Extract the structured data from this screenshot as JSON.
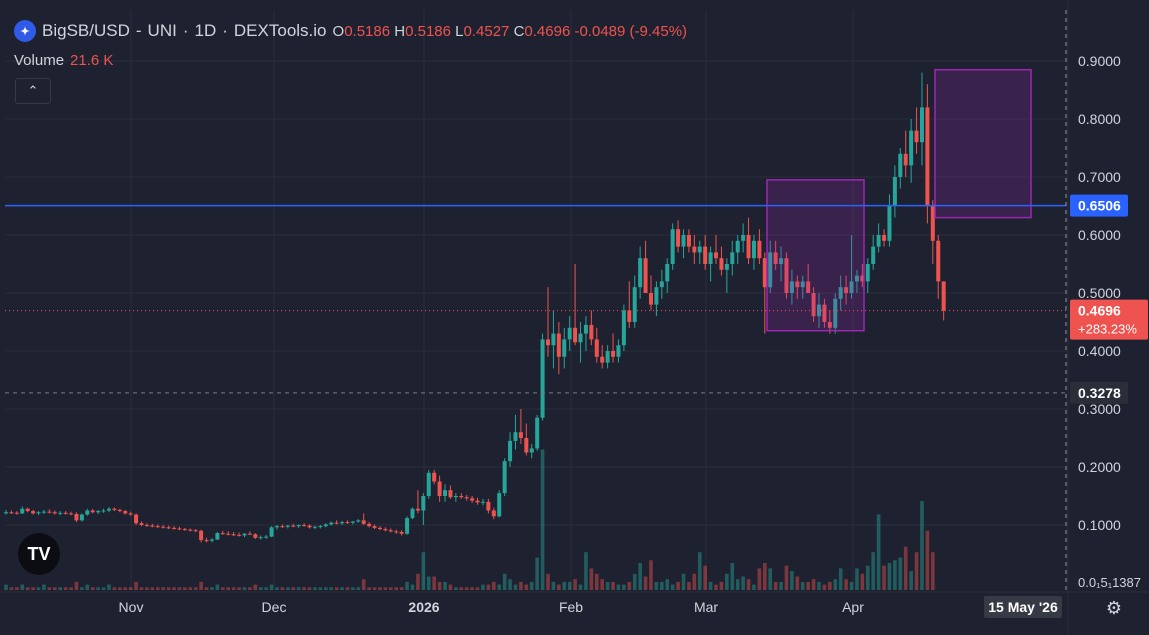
{
  "header": {
    "symbol": "BigSB/USD",
    "exchange": "UNI",
    "interval": "1D",
    "source": "DEXTools.io",
    "o_label": "O",
    "o": "0.5186",
    "h_label": "H",
    "h": "0.5186",
    "l_label": "L",
    "l": "0.4527",
    "c_label": "C",
    "c": "0.4696",
    "change": "-0.0489 (-9.45%)"
  },
  "volume_label": "Volume",
  "volume_value": "21.6 K",
  "colors": {
    "up": "#26a69a",
    "down": "#ef5350",
    "hline": "#2962ff",
    "box": "#9c27b0",
    "bg": "#1e2230",
    "grid": "#2a2e39",
    "text": "#d1d4dc"
  },
  "chart_data": {
    "type": "candlestick",
    "ylim": [
      0,
      0.98
    ],
    "y_ticks": [
      "0.9000",
      "0.8000",
      "0.7000",
      "0.6000",
      "0.5000",
      "0.4000",
      "0.3000",
      "0.2000",
      "0.1000"
    ],
    "x_ticks": [
      "Nov",
      "Dec",
      "2026",
      "Feb",
      "Mar",
      "Apr"
    ],
    "crosshair_x_label": "15 May '26",
    "axis_bottom_label": "0.0₁5₁1387",
    "price_labels": {
      "hline": "0.6506",
      "last": "0.4696",
      "last_pct": "+283.23%",
      "dashed": "0.3278"
    },
    "hline_value": 0.6506,
    "dashed_value": 0.3278,
    "last_value": 0.4696,
    "boxes": [
      {
        "x0": "Mar 15",
        "x1": "Apr 3",
        "y0": 0.435,
        "y1": 0.695
      },
      {
        "x0": "Apr 21",
        "x1": "May 6",
        "y0": 0.63,
        "y1": 0.885
      }
    ],
    "ohlc": [
      [
        0.12,
        0.126,
        0.118,
        0.122
      ],
      [
        0.122,
        0.125,
        0.119,
        0.121
      ],
      [
        0.121,
        0.124,
        0.118,
        0.12
      ],
      [
        0.12,
        0.132,
        0.119,
        0.128
      ],
      [
        0.128,
        0.13,
        0.122,
        0.124
      ],
      [
        0.124,
        0.126,
        0.118,
        0.12
      ],
      [
        0.12,
        0.124,
        0.117,
        0.122
      ],
      [
        0.122,
        0.126,
        0.119,
        0.123
      ],
      [
        0.123,
        0.127,
        0.12,
        0.122
      ],
      [
        0.122,
        0.125,
        0.118,
        0.12
      ],
      [
        0.12,
        0.124,
        0.117,
        0.121
      ],
      [
        0.121,
        0.124,
        0.118,
        0.12
      ],
      [
        0.12,
        0.123,
        0.117,
        0.119
      ],
      [
        0.119,
        0.122,
        0.105,
        0.108
      ],
      [
        0.108,
        0.12,
        0.106,
        0.118
      ],
      [
        0.118,
        0.128,
        0.116,
        0.125
      ],
      [
        0.125,
        0.128,
        0.12,
        0.122
      ],
      [
        0.122,
        0.126,
        0.119,
        0.124
      ],
      [
        0.124,
        0.128,
        0.121,
        0.125
      ],
      [
        0.125,
        0.131,
        0.122,
        0.128
      ],
      [
        0.128,
        0.13,
        0.124,
        0.126
      ],
      [
        0.126,
        0.128,
        0.122,
        0.124
      ],
      [
        0.124,
        0.126,
        0.118,
        0.12
      ],
      [
        0.12,
        0.123,
        0.116,
        0.118
      ],
      [
        0.118,
        0.12,
        0.1,
        0.103
      ],
      [
        0.103,
        0.106,
        0.098,
        0.1
      ],
      [
        0.1,
        0.103,
        0.097,
        0.099
      ],
      [
        0.099,
        0.102,
        0.096,
        0.098
      ],
      [
        0.098,
        0.101,
        0.095,
        0.097
      ],
      [
        0.097,
        0.1,
        0.094,
        0.096
      ],
      [
        0.096,
        0.099,
        0.093,
        0.095
      ],
      [
        0.095,
        0.098,
        0.092,
        0.094
      ],
      [
        0.094,
        0.097,
        0.091,
        0.093
      ],
      [
        0.093,
        0.095,
        0.09,
        0.092
      ],
      [
        0.092,
        0.094,
        0.089,
        0.091
      ],
      [
        0.091,
        0.093,
        0.088,
        0.09
      ],
      [
        0.09,
        0.092,
        0.07,
        0.074
      ],
      [
        0.074,
        0.078,
        0.07,
        0.073
      ],
      [
        0.073,
        0.077,
        0.07,
        0.075
      ],
      [
        0.075,
        0.088,
        0.074,
        0.086
      ],
      [
        0.086,
        0.09,
        0.083,
        0.085
      ],
      [
        0.085,
        0.089,
        0.082,
        0.084
      ],
      [
        0.084,
        0.088,
        0.081,
        0.083
      ],
      [
        0.083,
        0.087,
        0.08,
        0.082
      ],
      [
        0.082,
        0.086,
        0.079,
        0.085
      ],
      [
        0.085,
        0.089,
        0.083,
        0.084
      ],
      [
        0.084,
        0.086,
        0.076,
        0.078
      ],
      [
        0.078,
        0.082,
        0.075,
        0.079
      ],
      [
        0.079,
        0.083,
        0.076,
        0.08
      ],
      [
        0.08,
        0.098,
        0.079,
        0.096
      ],
      [
        0.096,
        0.1,
        0.092,
        0.098
      ],
      [
        0.098,
        0.101,
        0.095,
        0.097
      ],
      [
        0.097,
        0.1,
        0.094,
        0.099
      ],
      [
        0.099,
        0.102,
        0.096,
        0.098
      ],
      [
        0.098,
        0.101,
        0.095,
        0.1
      ],
      [
        0.1,
        0.103,
        0.097,
        0.099
      ],
      [
        0.099,
        0.101,
        0.094,
        0.096
      ],
      [
        0.096,
        0.099,
        0.093,
        0.097
      ],
      [
        0.097,
        0.1,
        0.094,
        0.098
      ],
      [
        0.098,
        0.103,
        0.096,
        0.101
      ],
      [
        0.101,
        0.106,
        0.099,
        0.104
      ],
      [
        0.104,
        0.108,
        0.101,
        0.103
      ],
      [
        0.103,
        0.107,
        0.1,
        0.105
      ],
      [
        0.105,
        0.108,
        0.102,
        0.104
      ],
      [
        0.104,
        0.107,
        0.101,
        0.106
      ],
      [
        0.106,
        0.11,
        0.104,
        0.108
      ],
      [
        0.108,
        0.12,
        0.1,
        0.102
      ],
      [
        0.102,
        0.105,
        0.096,
        0.098
      ],
      [
        0.098,
        0.101,
        0.093,
        0.095
      ],
      [
        0.095,
        0.098,
        0.091,
        0.093
      ],
      [
        0.093,
        0.096,
        0.089,
        0.091
      ],
      [
        0.091,
        0.094,
        0.087,
        0.089
      ],
      [
        0.089,
        0.092,
        0.085,
        0.088
      ],
      [
        0.088,
        0.091,
        0.082,
        0.085
      ],
      [
        0.085,
        0.115,
        0.083,
        0.112
      ],
      [
        0.112,
        0.13,
        0.11,
        0.128
      ],
      [
        0.128,
        0.16,
        0.12,
        0.125
      ],
      [
        0.125,
        0.155,
        0.1,
        0.15
      ],
      [
        0.15,
        0.195,
        0.145,
        0.19
      ],
      [
        0.19,
        0.195,
        0.17,
        0.175
      ],
      [
        0.175,
        0.185,
        0.14,
        0.15
      ],
      [
        0.15,
        0.17,
        0.14,
        0.16
      ],
      [
        0.16,
        0.168,
        0.145,
        0.148
      ],
      [
        0.148,
        0.155,
        0.14,
        0.15
      ],
      [
        0.15,
        0.155,
        0.145,
        0.148
      ],
      [
        0.148,
        0.152,
        0.142,
        0.146
      ],
      [
        0.146,
        0.15,
        0.138,
        0.142
      ],
      [
        0.142,
        0.147,
        0.135,
        0.139
      ],
      [
        0.139,
        0.145,
        0.134,
        0.14
      ],
      [
        0.14,
        0.145,
        0.12,
        0.125
      ],
      [
        0.125,
        0.13,
        0.11,
        0.115
      ],
      [
        0.115,
        0.16,
        0.113,
        0.155
      ],
      [
        0.155,
        0.215,
        0.15,
        0.21
      ],
      [
        0.21,
        0.26,
        0.2,
        0.245
      ],
      [
        0.245,
        0.29,
        0.23,
        0.26
      ],
      [
        0.26,
        0.3,
        0.24,
        0.25
      ],
      [
        0.25,
        0.275,
        0.22,
        0.225
      ],
      [
        0.225,
        0.24,
        0.215,
        0.232
      ],
      [
        0.232,
        0.29,
        0.228,
        0.285
      ],
      [
        0.285,
        0.43,
        0.28,
        0.42
      ],
      [
        0.42,
        0.51,
        0.39,
        0.41
      ],
      [
        0.41,
        0.47,
        0.37,
        0.43
      ],
      [
        0.43,
        0.45,
        0.36,
        0.39
      ],
      [
        0.39,
        0.44,
        0.37,
        0.42
      ],
      [
        0.42,
        0.46,
        0.4,
        0.44
      ],
      [
        0.44,
        0.55,
        0.41,
        0.415
      ],
      [
        0.415,
        0.45,
        0.38,
        0.43
      ],
      [
        0.43,
        0.46,
        0.4,
        0.445
      ],
      [
        0.445,
        0.47,
        0.41,
        0.42
      ],
      [
        0.42,
        0.44,
        0.38,
        0.39
      ],
      [
        0.39,
        0.41,
        0.37,
        0.38
      ],
      [
        0.38,
        0.41,
        0.37,
        0.4
      ],
      [
        0.4,
        0.43,
        0.38,
        0.39
      ],
      [
        0.39,
        0.42,
        0.38,
        0.41
      ],
      [
        0.41,
        0.48,
        0.4,
        0.47
      ],
      [
        0.47,
        0.52,
        0.44,
        0.45
      ],
      [
        0.45,
        0.53,
        0.44,
        0.51
      ],
      [
        0.51,
        0.58,
        0.49,
        0.56
      ],
      [
        0.56,
        0.59,
        0.5,
        0.5
      ],
      [
        0.5,
        0.53,
        0.47,
        0.48
      ],
      [
        0.48,
        0.52,
        0.46,
        0.51
      ],
      [
        0.51,
        0.54,
        0.49,
        0.52
      ],
      [
        0.52,
        0.56,
        0.5,
        0.55
      ],
      [
        0.55,
        0.62,
        0.54,
        0.61
      ],
      [
        0.61,
        0.625,
        0.57,
        0.58
      ],
      [
        0.58,
        0.61,
        0.56,
        0.6
      ],
      [
        0.6,
        0.61,
        0.57,
        0.58
      ],
      [
        0.58,
        0.6,
        0.55,
        0.57
      ],
      [
        0.57,
        0.59,
        0.55,
        0.58
      ],
      [
        0.58,
        0.6,
        0.54,
        0.55
      ],
      [
        0.55,
        0.58,
        0.52,
        0.57
      ],
      [
        0.57,
        0.6,
        0.55,
        0.56
      ],
      [
        0.56,
        0.58,
        0.53,
        0.54
      ],
      [
        0.54,
        0.56,
        0.5,
        0.55
      ],
      [
        0.55,
        0.59,
        0.53,
        0.57
      ],
      [
        0.57,
        0.6,
        0.55,
        0.59
      ],
      [
        0.59,
        0.62,
        0.57,
        0.6
      ],
      [
        0.6,
        0.63,
        0.55,
        0.56
      ],
      [
        0.56,
        0.6,
        0.54,
        0.59
      ],
      [
        0.59,
        0.61,
        0.55,
        0.56
      ],
      [
        0.56,
        0.57,
        0.43,
        0.51
      ],
      [
        0.51,
        0.59,
        0.5,
        0.57
      ],
      [
        0.57,
        0.59,
        0.54,
        0.55
      ],
      [
        0.55,
        0.58,
        0.52,
        0.56
      ],
      [
        0.56,
        0.57,
        0.49,
        0.5
      ],
      [
        0.5,
        0.54,
        0.48,
        0.52
      ],
      [
        0.52,
        0.53,
        0.49,
        0.51
      ],
      [
        0.51,
        0.53,
        0.49,
        0.52
      ],
      [
        0.52,
        0.55,
        0.5,
        0.5
      ],
      [
        0.5,
        0.51,
        0.45,
        0.46
      ],
      [
        0.46,
        0.5,
        0.44,
        0.48
      ],
      [
        0.48,
        0.49,
        0.44,
        0.45
      ],
      [
        0.45,
        0.47,
        0.43,
        0.44
      ],
      [
        0.44,
        0.5,
        0.43,
        0.49
      ],
      [
        0.49,
        0.53,
        0.47,
        0.51
      ],
      [
        0.51,
        0.53,
        0.48,
        0.5
      ],
      [
        0.5,
        0.6,
        0.49,
        0.52
      ],
      [
        0.52,
        0.54,
        0.5,
        0.53
      ],
      [
        0.53,
        0.55,
        0.51,
        0.52
      ],
      [
        0.52,
        0.56,
        0.5,
        0.55
      ],
      [
        0.55,
        0.6,
        0.54,
        0.58
      ],
      [
        0.58,
        0.62,
        0.57,
        0.6
      ],
      [
        0.6,
        0.61,
        0.58,
        0.59
      ],
      [
        0.59,
        0.67,
        0.58,
        0.65
      ],
      [
        0.65,
        0.72,
        0.63,
        0.7
      ],
      [
        0.7,
        0.75,
        0.68,
        0.74
      ],
      [
        0.74,
        0.78,
        0.7,
        0.72
      ],
      [
        0.72,
        0.8,
        0.69,
        0.78
      ],
      [
        0.78,
        0.82,
        0.74,
        0.76
      ],
      [
        0.76,
        0.88,
        0.72,
        0.82
      ],
      [
        0.82,
        0.86,
        0.62,
        0.65
      ],
      [
        0.65,
        0.66,
        0.55,
        0.59
      ],
      [
        0.59,
        0.6,
        0.49,
        0.52
      ],
      [
        0.52,
        0.5186,
        0.4527,
        0.4696
      ]
    ],
    "volume": [
      2,
      1,
      1,
      2,
      1,
      1,
      1,
      2,
      1,
      1,
      1,
      1,
      1,
      3,
      1,
      2,
      1,
      1,
      1,
      2,
      1,
      1,
      1,
      1,
      3,
      1,
      1,
      1,
      1,
      1,
      1,
      1,
      1,
      1,
      1,
      1,
      3,
      1,
      1,
      2,
      1,
      1,
      1,
      1,
      1,
      1,
      2,
      1,
      1,
      2,
      1,
      1,
      1,
      1,
      1,
      1,
      1,
      1,
      1,
      1,
      1,
      1,
      1,
      1,
      1,
      1,
      4,
      1,
      1,
      1,
      1,
      1,
      1,
      1,
      3,
      2,
      6,
      14,
      5,
      5,
      3,
      3,
      2,
      1,
      1,
      1,
      1,
      1,
      2,
      2,
      3,
      2,
      6,
      4,
      2,
      3,
      2,
      3,
      12,
      52,
      6,
      3,
      2,
      3,
      3,
      4,
      2,
      14,
      8,
      6,
      4,
      3,
      3,
      2,
      2,
      3,
      6,
      10,
      5,
      11,
      3,
      3,
      4,
      2,
      3,
      6,
      3,
      6,
      14,
      9,
      3,
      2,
      3,
      6,
      10,
      4,
      5,
      4,
      2,
      8,
      10,
      8,
      3,
      3,
      9,
      7,
      5,
      3,
      3,
      4,
      3,
      2,
      3,
      4,
      8,
      4,
      3,
      8,
      6,
      9,
      14,
      28,
      9,
      10,
      11,
      12,
      16,
      7,
      14,
      33,
      22,
      14
    ]
  }
}
